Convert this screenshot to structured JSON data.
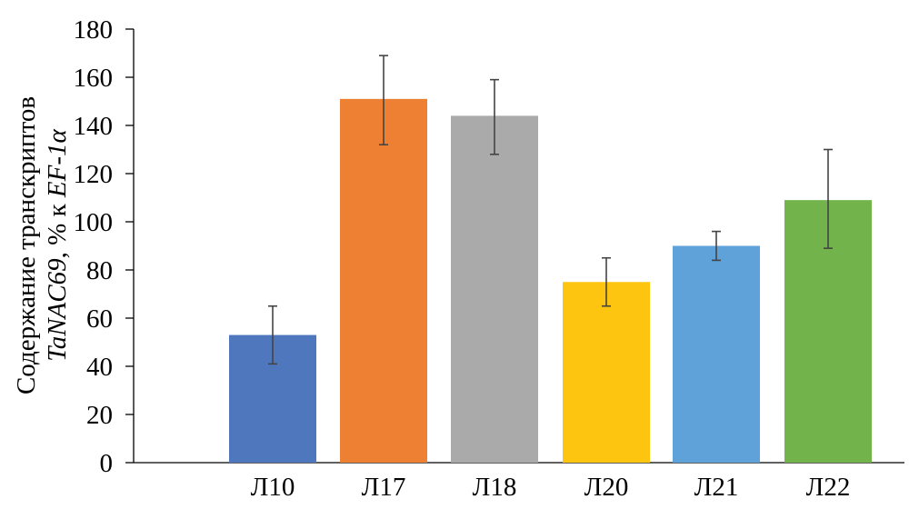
{
  "chart_data": {
    "type": "bar",
    "title": "",
    "xlabel": "",
    "ylabel": {
      "line1": "Содержание транскриптов",
      "line2_italic_a": "TaNAC69",
      "line2_plain": ", % к ",
      "line2_italic_b": "EF-1α"
    },
    "ylim": [
      0,
      180
    ],
    "yticks": [
      0,
      20,
      40,
      60,
      80,
      100,
      120,
      140,
      160,
      180
    ],
    "ytick_labels": [
      "0",
      "20",
      "40",
      "60",
      "80",
      "100",
      "120",
      "140",
      "160",
      "180"
    ],
    "grid": false,
    "categories": [
      "Л10",
      "Л17",
      "Л18",
      "Л20",
      "Л21",
      "Л22"
    ],
    "values": [
      53,
      151,
      144,
      75,
      90,
      109
    ],
    "errors": [
      [
        41,
        65
      ],
      [
        132,
        169
      ],
      [
        128,
        159
      ],
      [
        65,
        85
      ],
      [
        84,
        96
      ],
      [
        89,
        130
      ]
    ],
    "colors": [
      "#4f77be",
      "#ee8033",
      "#aaaaaa",
      "#fec510",
      "#5ea2d9",
      "#72b44b"
    ]
  }
}
